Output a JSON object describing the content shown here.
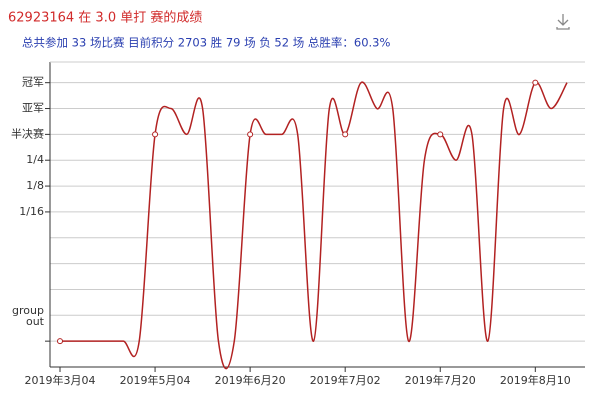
{
  "chart_data": {
    "type": "line",
    "title": "62923164 在 3.0 单打 赛的成绩",
    "subtitle": "总共参加 33 场比赛  目前积分 2703 胜 79 场  负 52 场  总胜率：60.3%",
    "categories": [
      "2019年3月04",
      null,
      null,
      null,
      null,
      null,
      "2019年5月04",
      null,
      null,
      null,
      null,
      null,
      "2019年6月20",
      null,
      null,
      null,
      null,
      null,
      "2019年7月02",
      null,
      null,
      null,
      null,
      null,
      "2019年7月20",
      null,
      null,
      null,
      null,
      null,
      "2019年8月10",
      null,
      null
    ],
    "series": [
      {
        "color": "#b22222",
        "values": [
          0,
          0,
          0,
          0,
          0,
          0,
          8,
          9,
          8,
          9,
          0,
          0,
          8,
          8,
          8,
          8,
          0,
          9,
          8,
          10,
          9,
          9,
          0,
          7,
          8,
          7,
          8,
          0,
          9,
          8,
          10,
          9,
          10
        ]
      }
    ],
    "ylim": [
      -1,
      10.8
    ],
    "yticks": [
      {
        "value": 0,
        "label": "group out"
      },
      {
        "value": 5,
        "label": "1/16"
      },
      {
        "value": 6,
        "label": "1/8"
      },
      {
        "value": 7,
        "label": "1/4"
      },
      {
        "value": 8,
        "label": "半决赛"
      },
      {
        "value": 9,
        "label": "亚军"
      },
      {
        "value": 10,
        "label": "冠军"
      }
    ],
    "grid": true
  }
}
